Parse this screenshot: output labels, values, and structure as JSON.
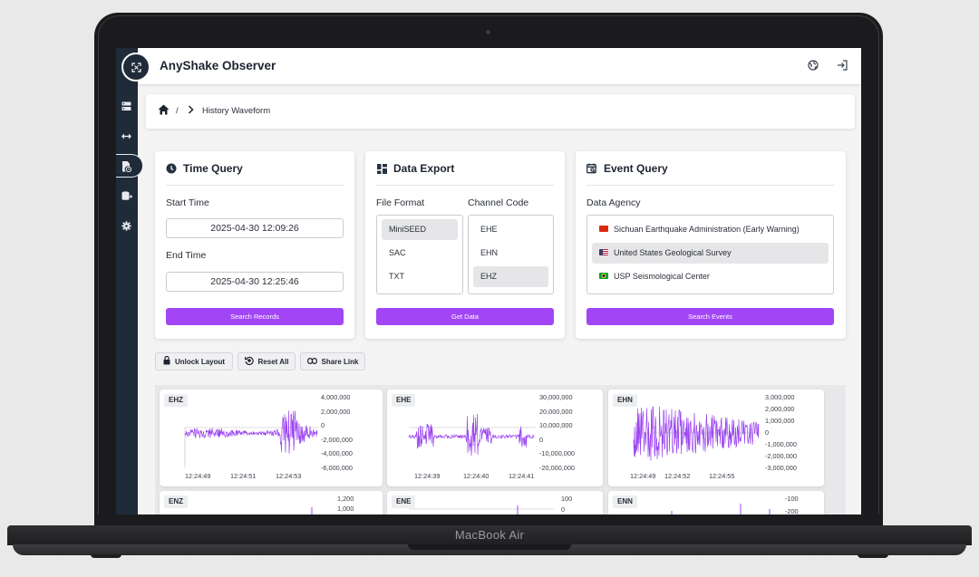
{
  "app": {
    "title": "AnyShake Observer"
  },
  "breadcrumb": {
    "separator": "/",
    "current": "History Waveform"
  },
  "time_query": {
    "title": "Time Query",
    "start_label": "Start Time",
    "start_value": "2025-04-30 12:09:26",
    "end_label": "End Time",
    "end_value": "2025-04-30 12:25:46",
    "button": "Search Records"
  },
  "data_export": {
    "title": "Data Export",
    "format_label": "File Format",
    "formats": [
      "MiniSEED",
      "SAC",
      "TXT"
    ],
    "channel_label": "Channel Code",
    "channels": [
      "EHE",
      "EHN",
      "EHZ"
    ],
    "button": "Get Data"
  },
  "event_query": {
    "title": "Event Query",
    "agency_label": "Data Agency",
    "agencies": [
      "Sichuan Earthquake Administration (Early Warning)",
      "United States Geological Survey",
      "USP Seismological Center"
    ],
    "button": "Search Events"
  },
  "toolbar": {
    "unlock": "Unlock Layout",
    "reset": "Reset All",
    "share": "Share Link"
  },
  "colors": {
    "accent": "#a246f5",
    "sidebar": "#1f2b38",
    "wave": "#9b45f0"
  },
  "charts": [
    {
      "channel": "EHZ",
      "yticks": [
        "4,000,000",
        "2,000,000",
        "0",
        "-2,000,000",
        "-4,000,000",
        "-6,000,000"
      ],
      "xticks": [
        "12:24:49",
        "12:24:51",
        "12:24:53"
      ]
    },
    {
      "channel": "EHE",
      "yticks": [
        "30,000,000",
        "20,000,000",
        "10,000,000",
        "0",
        "-10,000,000",
        "-20,000,000"
      ],
      "xticks": [
        "12:24:39",
        "12:24:40",
        "12:24:41"
      ]
    },
    {
      "channel": "EHN",
      "yticks": [
        "3,000,000",
        "2,000,000",
        "1,000,000",
        "0",
        "-1,000,000",
        "-2,000,000",
        "-3,000,000"
      ],
      "xticks": [
        "12:24:49",
        "12:24:52",
        "12:24:55"
      ]
    },
    {
      "channel": "ENZ",
      "yticks": [
        "1,200",
        "1,000"
      ]
    },
    {
      "channel": "ENE",
      "yticks": [
        "100",
        "0"
      ]
    },
    {
      "channel": "ENN",
      "yticks": [
        "-100",
        "-200"
      ]
    }
  ],
  "device": {
    "label": "MacBook Air"
  }
}
